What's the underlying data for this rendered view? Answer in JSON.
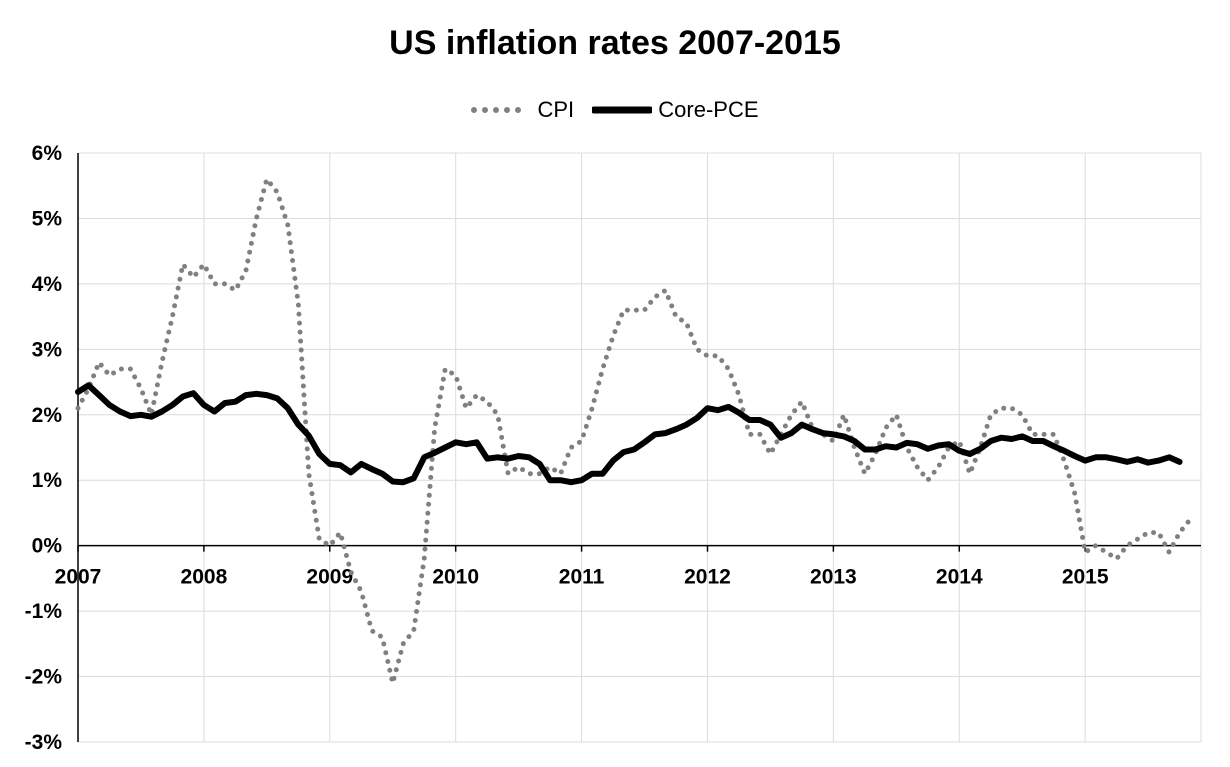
{
  "chart_data": {
    "type": "line",
    "title": "US inflation rates 2007-2015",
    "xlabel": "",
    "ylabel": "",
    "x_ticks": [
      "2007",
      "2008",
      "2009",
      "2010",
      "2011",
      "2012",
      "2013",
      "2014",
      "2015"
    ],
    "y_ticks": [
      "6%",
      "5%",
      "4%",
      "3%",
      "2%",
      "1%",
      "0%",
      "-1%",
      "-2%",
      "-3%"
    ],
    "ylim": [
      -3,
      6
    ],
    "xlim": [
      2007.0,
      2015.92
    ],
    "grid": true,
    "legend_position": "top-center",
    "series": [
      {
        "name": "CPI",
        "style": "dotted",
        "color": "#808080",
        "start_year": 2007,
        "monthly_values": [
          2.1,
          2.4,
          2.8,
          2.6,
          2.7,
          2.7,
          2.4,
          2.0,
          2.8,
          3.5,
          4.3,
          4.1,
          4.3,
          4.0,
          4.0,
          3.9,
          4.2,
          5.0,
          5.6,
          5.4,
          4.9,
          3.7,
          1.1,
          0.1,
          0.0,
          0.2,
          -0.4,
          -0.7,
          -1.3,
          -1.4,
          -2.1,
          -1.5,
          -1.3,
          -0.2,
          1.8,
          2.7,
          2.6,
          2.1,
          2.3,
          2.2,
          2.0,
          1.1,
          1.2,
          1.1,
          1.1,
          1.2,
          1.1,
          1.5,
          1.6,
          2.1,
          2.7,
          3.2,
          3.6,
          3.6,
          3.6,
          3.8,
          3.9,
          3.5,
          3.4,
          3.0,
          2.9,
          2.9,
          2.7,
          2.3,
          1.7,
          1.7,
          1.4,
          1.7,
          2.0,
          2.2,
          1.8,
          1.7,
          1.6,
          2.0,
          1.5,
          1.1,
          1.4,
          1.8,
          2.0,
          1.5,
          1.2,
          1.0,
          1.2,
          1.5,
          1.6,
          1.1,
          1.5,
          2.0,
          2.1,
          2.1,
          2.0,
          1.7,
          1.7,
          1.7,
          1.3,
          0.8,
          -0.1,
          0.0,
          -0.1,
          -0.2,
          0.0,
          0.1,
          0.2,
          0.2,
          -0.1,
          0.2,
          0.4
        ]
      },
      {
        "name": "Core-PCE",
        "style": "solid",
        "color": "#000000",
        "start_year": 2007,
        "monthly_values": [
          2.35,
          2.45,
          2.3,
          2.15,
          2.05,
          1.98,
          2.0,
          1.97,
          2.05,
          2.15,
          2.28,
          2.33,
          2.15,
          2.05,
          2.18,
          2.2,
          2.3,
          2.32,
          2.3,
          2.25,
          2.1,
          1.85,
          1.68,
          1.4,
          1.25,
          1.23,
          1.12,
          1.25,
          1.17,
          1.1,
          0.98,
          0.97,
          1.03,
          1.35,
          1.42,
          1.5,
          1.58,
          1.55,
          1.58,
          1.33,
          1.35,
          1.33,
          1.37,
          1.35,
          1.25,
          1.0,
          1.0,
          0.97,
          1.0,
          1.1,
          1.1,
          1.3,
          1.43,
          1.47,
          1.58,
          1.7,
          1.72,
          1.78,
          1.85,
          1.95,
          2.1,
          2.07,
          2.12,
          2.03,
          1.92,
          1.92,
          1.85,
          1.65,
          1.72,
          1.85,
          1.78,
          1.72,
          1.7,
          1.67,
          1.6,
          1.47,
          1.47,
          1.52,
          1.5,
          1.57,
          1.55,
          1.48,
          1.53,
          1.55,
          1.45,
          1.4,
          1.48,
          1.6,
          1.65,
          1.63,
          1.67,
          1.6,
          1.6,
          1.52,
          1.45,
          1.37,
          1.3,
          1.35,
          1.35,
          1.32,
          1.28,
          1.32,
          1.27,
          1.3,
          1.35,
          1.28
        ]
      }
    ]
  }
}
